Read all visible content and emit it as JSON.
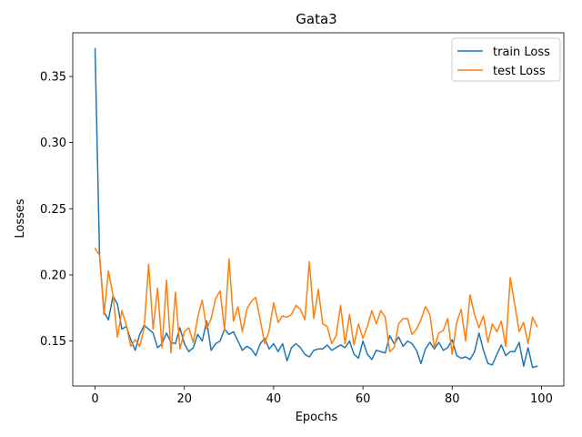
{
  "chart_data": {
    "type": "line",
    "title": "Gata3",
    "xlabel": "Epochs",
    "ylabel": "Losses",
    "xlim": [
      -5,
      105
    ],
    "ylim": [
      0.116,
      0.383
    ],
    "xticks": [
      0,
      20,
      40,
      60,
      80,
      100
    ],
    "yticks": [
      0.15,
      0.2,
      0.25,
      0.3,
      0.35
    ],
    "xtick_labels": [
      "0",
      "20",
      "40",
      "60",
      "80",
      "100"
    ],
    "ytick_labels": [
      "0.15",
      "0.20",
      "0.25",
      "0.30",
      "0.35"
    ],
    "grid": false,
    "legend_position": "top-right",
    "x": [
      0,
      1,
      2,
      3,
      4,
      5,
      6,
      7,
      8,
      9,
      10,
      11,
      12,
      13,
      14,
      15,
      16,
      17,
      18,
      19,
      20,
      21,
      22,
      23,
      24,
      25,
      26,
      27,
      28,
      29,
      30,
      31,
      32,
      33,
      34,
      35,
      36,
      37,
      38,
      39,
      40,
      41,
      42,
      43,
      44,
      45,
      46,
      47,
      48,
      49,
      50,
      51,
      52,
      53,
      54,
      55,
      56,
      57,
      58,
      59,
      60,
      61,
      62,
      63,
      64,
      65,
      66,
      67,
      68,
      69,
      70,
      71,
      72,
      73,
      74,
      75,
      76,
      77,
      78,
      79,
      80,
      81,
      82,
      83,
      84,
      85,
      86,
      87,
      88,
      89,
      90,
      91,
      92,
      93,
      94,
      95,
      96,
      97,
      98,
      99
    ],
    "series": [
      {
        "name": "train Loss",
        "color": "#1f77b4",
        "values": [
          0.371,
          0.215,
          0.172,
          0.166,
          0.184,
          0.178,
          0.159,
          0.161,
          0.151,
          0.143,
          0.155,
          0.162,
          0.159,
          0.156,
          0.145,
          0.148,
          0.156,
          0.149,
          0.148,
          0.16,
          0.148,
          0.142,
          0.145,
          0.155,
          0.15,
          0.165,
          0.143,
          0.148,
          0.15,
          0.159,
          0.155,
          0.157,
          0.15,
          0.143,
          0.146,
          0.144,
          0.139,
          0.148,
          0.152,
          0.144,
          0.148,
          0.142,
          0.148,
          0.135,
          0.145,
          0.148,
          0.145,
          0.14,
          0.138,
          0.143,
          0.144,
          0.144,
          0.147,
          0.143,
          0.145,
          0.147,
          0.145,
          0.15,
          0.14,
          0.137,
          0.15,
          0.14,
          0.136,
          0.143,
          0.142,
          0.141,
          0.154,
          0.148,
          0.153,
          0.146,
          0.15,
          0.148,
          0.143,
          0.133,
          0.144,
          0.149,
          0.144,
          0.149,
          0.143,
          0.145,
          0.151,
          0.139,
          0.137,
          0.138,
          0.136,
          0.142,
          0.156,
          0.143,
          0.133,
          0.132,
          0.14,
          0.147,
          0.139,
          0.142,
          0.142,
          0.149,
          0.131,
          0.145,
          0.13,
          0.131
        ]
      },
      {
        "name": "test Loss",
        "color": "#ff7f0e",
        "values": [
          0.22,
          0.215,
          0.17,
          0.203,
          0.185,
          0.153,
          0.173,
          0.162,
          0.146,
          0.151,
          0.146,
          0.16,
          0.208,
          0.159,
          0.19,
          0.145,
          0.196,
          0.141,
          0.187,
          0.144,
          0.157,
          0.16,
          0.149,
          0.168,
          0.181,
          0.159,
          0.167,
          0.182,
          0.188,
          0.158,
          0.212,
          0.165,
          0.176,
          0.157,
          0.174,
          0.18,
          0.183,
          0.166,
          0.148,
          0.158,
          0.179,
          0.164,
          0.169,
          0.168,
          0.17,
          0.177,
          0.174,
          0.166,
          0.21,
          0.167,
          0.189,
          0.163,
          0.161,
          0.148,
          0.154,
          0.177,
          0.148,
          0.17,
          0.147,
          0.163,
          0.152,
          0.161,
          0.173,
          0.163,
          0.173,
          0.168,
          0.142,
          0.145,
          0.163,
          0.167,
          0.167,
          0.155,
          0.159,
          0.166,
          0.176,
          0.17,
          0.145,
          0.156,
          0.158,
          0.167,
          0.14,
          0.164,
          0.174,
          0.15,
          0.185,
          0.17,
          0.16,
          0.169,
          0.149,
          0.163,
          0.157,
          0.165,
          0.146,
          0.198,
          0.178,
          0.157,
          0.164,
          0.148,
          0.168,
          0.161
        ]
      }
    ]
  }
}
